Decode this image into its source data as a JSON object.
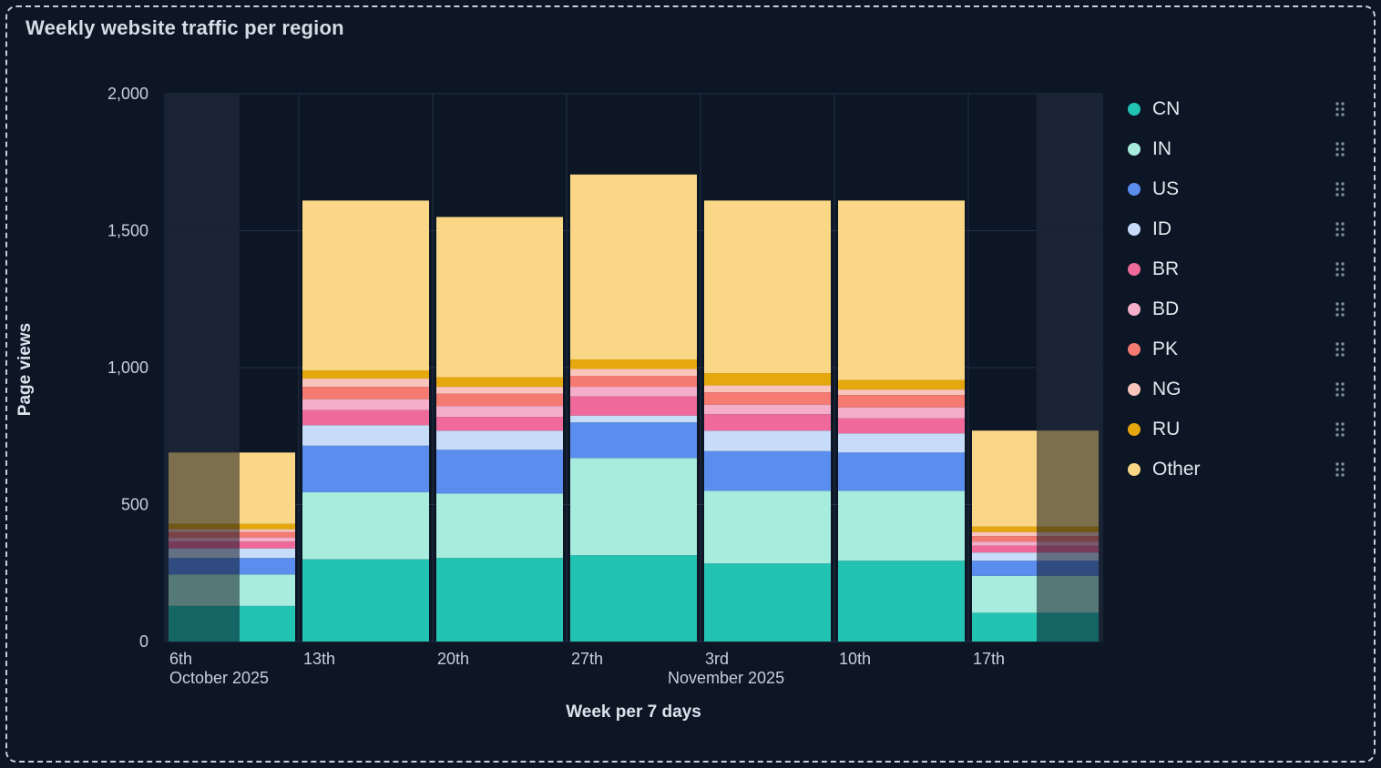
{
  "header": {
    "title": "Weekly website traffic per region"
  },
  "icons": {
    "legend_item_menu": "drag-handle-icon"
  },
  "chart_data": {
    "type": "bar",
    "stacked": true,
    "title": "Weekly website traffic per region",
    "xlabel": "Week per 7 days",
    "ylabel": "Page views",
    "ylim": [
      0,
      2000
    ],
    "yticks": [
      0,
      500,
      1000,
      1500,
      2000
    ],
    "ytick_labels": [
      "0",
      "500",
      "1,000",
      "1,500",
      "2,000"
    ],
    "categories": [
      "6th",
      "13th",
      "20th",
      "27th",
      "3rd",
      "10th",
      "17th"
    ],
    "month_labels": [
      {
        "index": 0,
        "label": "October 2025"
      },
      {
        "index": 4,
        "label": "November 2025"
      }
    ],
    "grid": true,
    "legend_position": "right",
    "edge_bars_dimmed": true,
    "series": [
      {
        "name": "CN",
        "color": "#23c3b4",
        "values": [
          130,
          300,
          305,
          315,
          285,
          295,
          105
        ]
      },
      {
        "name": "IN",
        "color": "#a7ecdc",
        "values": [
          115,
          245,
          235,
          355,
          265,
          255,
          135
        ]
      },
      {
        "name": "US",
        "color": "#5b8def",
        "values": [
          60,
          170,
          160,
          130,
          145,
          140,
          55
        ]
      },
      {
        "name": "ID",
        "color": "#c7dcf8",
        "values": [
          35,
          75,
          70,
          25,
          75,
          70,
          30
        ]
      },
      {
        "name": "BR",
        "color": "#ef6a9b",
        "values": [
          25,
          55,
          50,
          70,
          60,
          55,
          25
        ]
      },
      {
        "name": "BD",
        "color": "#f5aec9",
        "values": [
          15,
          40,
          40,
          35,
          35,
          40,
          15
        ]
      },
      {
        "name": "PK",
        "color": "#f47a72",
        "values": [
          20,
          45,
          45,
          40,
          45,
          45,
          20
        ]
      },
      {
        "name": "NG",
        "color": "#f9c4bb",
        "values": [
          10,
          30,
          25,
          25,
          25,
          20,
          15
        ]
      },
      {
        "name": "RU",
        "color": "#e4a70d",
        "values": [
          20,
          30,
          35,
          35,
          45,
          35,
          20
        ]
      },
      {
        "name": "Other",
        "color": "#f9d786",
        "values": [
          260,
          620,
          585,
          675,
          630,
          655,
          350
        ]
      }
    ],
    "totals": [
      690,
      1610,
      1550,
      1705,
      1610,
      1610,
      770
    ]
  }
}
